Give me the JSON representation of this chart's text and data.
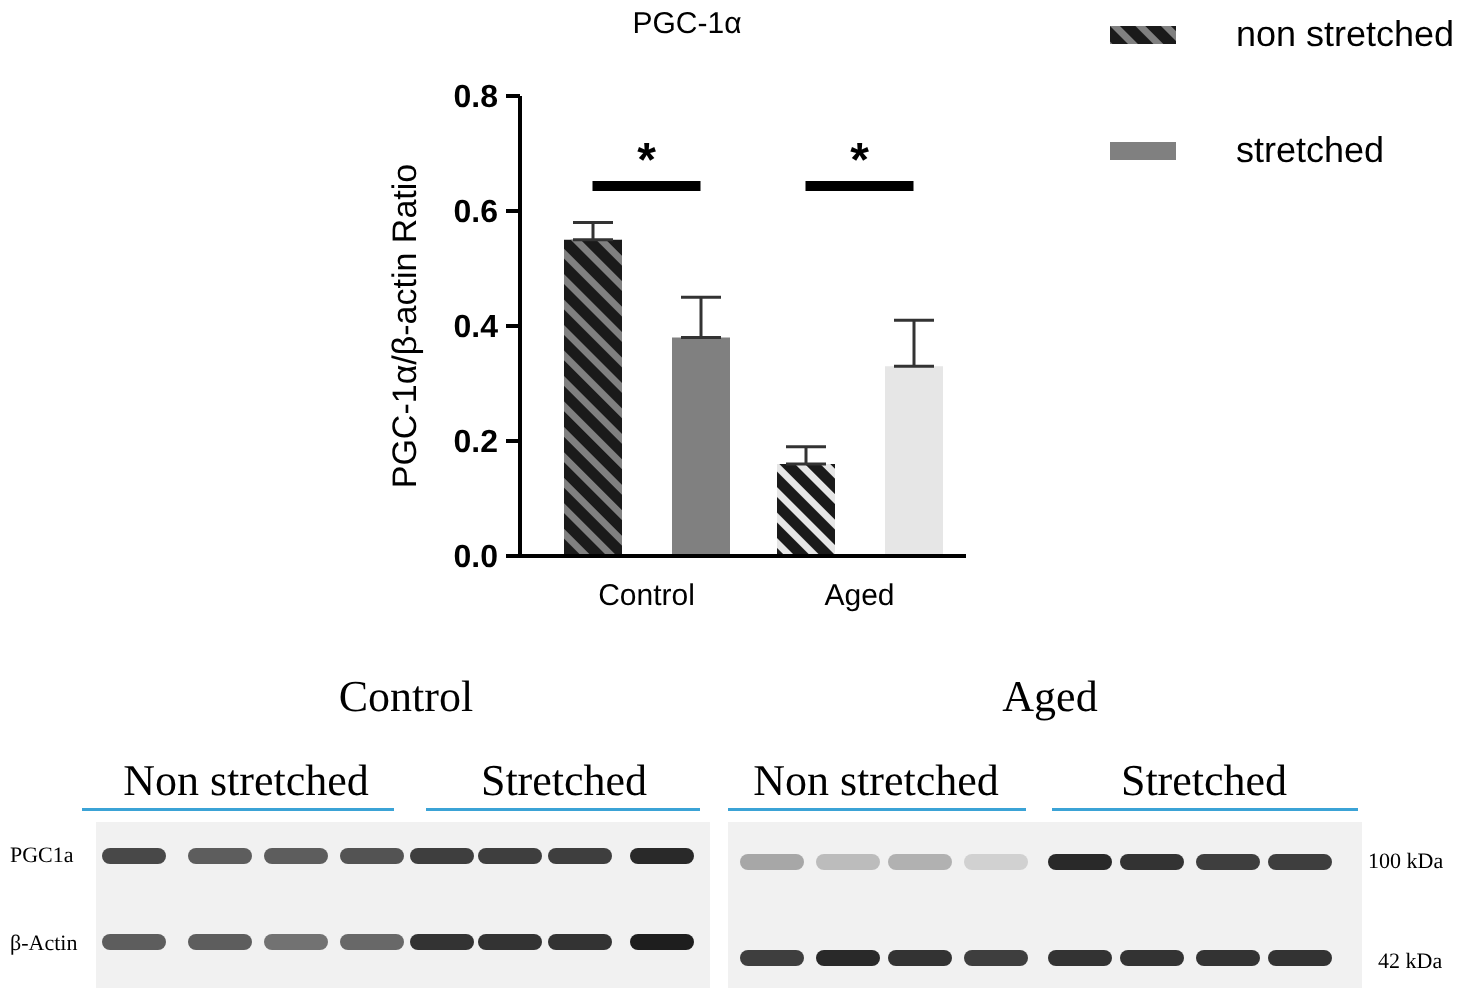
{
  "chart_data": {
    "type": "bar",
    "title": "PGC-1α",
    "ylabel": "PGC-1α/β-actin Ratio",
    "categories": [
      "Control",
      "Aged"
    ],
    "series": [
      {
        "name": "non stretched",
        "color": "#1a1a1a",
        "colors": [
          "#808080",
          "#e6e6e6"
        ],
        "values": [
          0.55,
          0.16
        ],
        "errors": [
          [
            0.55,
            0.58
          ],
          [
            0.16,
            0.19
          ]
        ]
      },
      {
        "name": "stretched",
        "color": "#808080",
        "colors": [
          "#808080",
          "#e6e6e6"
        ],
        "values": [
          0.38,
          0.33
        ],
        "errors": [
          [
            0.38,
            0.45
          ],
          [
            0.33,
            0.41
          ]
        ]
      }
    ],
    "ylim": [
      0,
      0.8
    ],
    "yticks": [
      {
        "value": 0,
        "label": "0.0"
      },
      0.2,
      0.4,
      0.6,
      0.8
    ],
    "grid": false,
    "legend": "top right",
    "annotations": [
      "*",
      "*",
      "Control",
      "Aged",
      "Non stretched",
      "Stretched",
      "Non stretched",
      "Stretched",
      "PGC1a",
      "β-Actin",
      "100 kDa",
      "42 kDa"
    ]
  }
}
